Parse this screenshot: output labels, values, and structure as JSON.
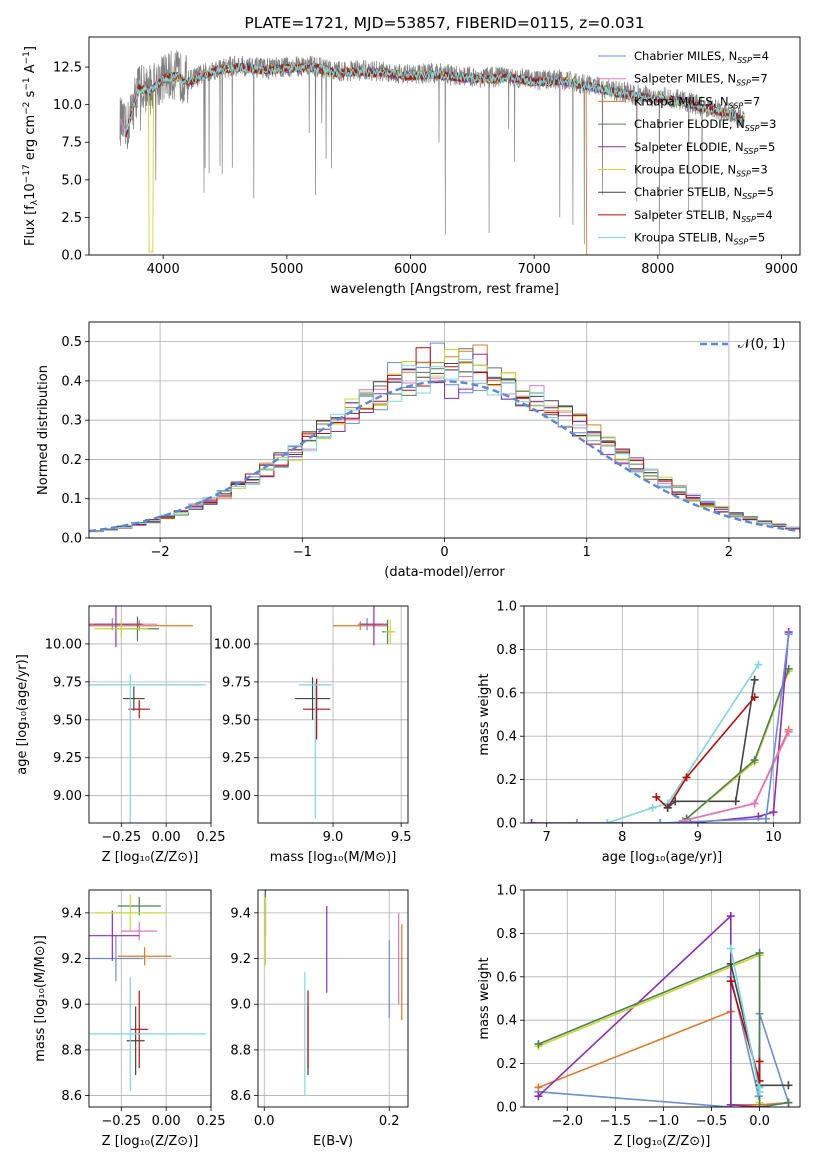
{
  "figure_title": "PLATE=1721, MJD=53857, FIBERID=0115, z=0.031",
  "colors": {
    "chabrier_miles": "#6b8ed6",
    "salpeter_miles": "#e377c2",
    "kroupa_miles": "#e07a2f",
    "chabrier_elodie": "#4f7f5a",
    "salpeter_elodie": "#8e2fb0",
    "kroupa_elodie": "#c8d830",
    "chabrier_stelib": "#444444",
    "salpeter_stelib": "#b01010",
    "kroupa_stelib": "#7fd6dd",
    "spectrum": "#808080",
    "gaussian": "#5b87d6"
  },
  "chart_data": [
    {
      "id": "spectrum",
      "type": "line",
      "ylabel_text": "Flux [f",
      "ylabel_sub": "λ",
      "ylabel_tail": "10",
      "ylabel_exp": "−17",
      "ylabel_units": " erg cm",
      "ylabel_exp2": "−2",
      "ylabel_units2": " s",
      "ylabel_exp3": "−1",
      "ylabel_units3": " A",
      "ylabel_exp4": "−1",
      "ylabel_close": "]",
      "xlabel": "wavelength [Angstrom, rest frame]",
      "xlim": [
        3400,
        9150
      ],
      "ylim": [
        0,
        14.5
      ],
      "xticks": [
        "4000",
        "5000",
        "6000",
        "7000",
        "8000",
        "9000"
      ],
      "xtick_values": [
        4000,
        5000,
        6000,
        7000,
        8000,
        9000
      ],
      "yticks": [
        "0.0",
        "2.5",
        "5.0",
        "7.5",
        "10.0",
        "12.5"
      ],
      "ytick_values": [
        0,
        2.5,
        5,
        7.5,
        10,
        12.5
      ],
      "legend": [
        {
          "prefix": "Chabrier MILES, N",
          "sub": "SSP",
          "suffix": "=4",
          "color_key": "chabrier_miles"
        },
        {
          "prefix": "Salpeter MILES, N",
          "sub": "SSP",
          "suffix": "=7",
          "color_key": "salpeter_miles"
        },
        {
          "prefix": "Kroupa MILES, N",
          "sub": "SSP",
          "suffix": "=7",
          "color_key": "kroupa_miles"
        },
        {
          "prefix": "Chabrier ELODIE, N",
          "sub": "SSP",
          "suffix": "=3",
          "color_key": "chabrier_elodie"
        },
        {
          "prefix": "Salpeter ELODIE, N",
          "sub": "SSP",
          "suffix": "=5",
          "color_key": "salpeter_elodie"
        },
        {
          "prefix": "Kroupa ELODIE, N",
          "sub": "SSP",
          "suffix": "=3",
          "color_key": "kroupa_elodie"
        },
        {
          "prefix": "Chabrier STELIB, N",
          "sub": "SSP",
          "suffix": "=5",
          "color_key": "chabrier_stelib"
        },
        {
          "prefix": "Salpeter STELIB, N",
          "sub": "SSP",
          "suffix": "=4",
          "color_key": "salpeter_stelib"
        },
        {
          "prefix": "Kroupa STELIB, N",
          "sub": "SSP",
          "suffix": "=5",
          "color_key": "kroupa_stelib"
        }
      ],
      "continuum_x": [
        3650,
        3700,
        3800,
        3900,
        4000,
        4100,
        4200,
        4400,
        4600,
        4800,
        5000,
        5200,
        5400,
        5600,
        5800,
        6000,
        6200,
        6400,
        6600,
        6800,
        7000,
        7200,
        7400,
        7600,
        7800,
        8000,
        8200,
        8400,
        8600,
        8700
      ],
      "continuum_y": [
        9.0,
        8.2,
        11.2,
        11.0,
        11.8,
        12.0,
        11.6,
        12.3,
        12.6,
        12.4,
        12.5,
        12.6,
        12.2,
        12.3,
        12.2,
        12.0,
        12.1,
        11.9,
        11.8,
        11.9,
        11.6,
        11.7,
        11.4,
        11.0,
        10.7,
        10.5,
        10.3,
        9.8,
        9.4,
        9.0
      ]
    },
    {
      "id": "residuals",
      "type": "histogram",
      "ylabel": "Normed distribution",
      "xlabel": "(data-model)/error",
      "xlim": [
        -2.5,
        2.5
      ],
      "ylim": [
        0,
        0.55
      ],
      "xticks": [
        "−2",
        "−1",
        "0",
        "1",
        "2"
      ],
      "xtick_values": [
        -2,
        -1,
        0,
        1,
        2
      ],
      "yticks": [
        "0.0",
        "0.1",
        "0.2",
        "0.3",
        "0.4",
        "0.5"
      ],
      "ytick_values": [
        0,
        0.1,
        0.2,
        0.3,
        0.4,
        0.5
      ],
      "legend_label": "𝒩(0, 1)",
      "bin_width": 0.1,
      "gaussian": {
        "mu": 0,
        "sigma": 1
      }
    },
    {
      "id": "age-vs-z",
      "type": "errorbar",
      "ylabel": "age  [log₁₀(age/yr)]",
      "xlabel": "Z [log₁₀(Z/Z⊙)]",
      "xlim": [
        -0.43,
        0.25
      ],
      "ylim": [
        8.82,
        10.25
      ],
      "xticks": [
        "−0.25",
        "0.00",
        "0.25"
      ],
      "xtick_values": [
        -0.25,
        0,
        0.25
      ],
      "yticks": [
        "9.00",
        "9.25",
        "9.50",
        "9.75",
        "10.00"
      ],
      "ytick_values": [
        9.0,
        9.25,
        9.5,
        9.75,
        10.0
      ],
      "points": [
        {
          "c": "chabrier_miles",
          "x": -0.3,
          "xe": 0.1,
          "y": 10.13,
          "ye": 0.04
        },
        {
          "c": "salpeter_miles",
          "x": -0.15,
          "xe": 0.1,
          "y": 10.13,
          "ye": 0.03
        },
        {
          "c": "kroupa_miles",
          "x": -0.15,
          "xe": 0.3,
          "y": 10.12,
          "ye": 0.03
        },
        {
          "c": "chabrier_elodie",
          "x": -0.16,
          "xe": 0.12,
          "y": 10.1,
          "ye": 0.08
        },
        {
          "c": "salpeter_elodie",
          "x": -0.28,
          "xe": 0.15,
          "y": 10.13,
          "ye": 0.15
        },
        {
          "c": "kroupa_elodie",
          "x": -0.25,
          "xe": 0.15,
          "y": 10.1,
          "ye": 0.06
        },
        {
          "c": "chabrier_stelib",
          "x": -0.18,
          "xe": 0.06,
          "y": 9.64,
          "ye": 0.08
        },
        {
          "c": "salpeter_stelib",
          "x": -0.15,
          "xe": 0.06,
          "y": 9.57,
          "ye": 0.06
        },
        {
          "c": "kroupa_stelib",
          "x": -0.2,
          "xe": 0.42,
          "y": 9.73,
          "ye": 0.0
        },
        {
          "c": "kroupa_stelib",
          "x": -0.2,
          "xe": 0.0,
          "y": 9.3,
          "ye": 0.5
        }
      ]
    },
    {
      "id": "age-vs-mass",
      "type": "errorbar",
      "xlabel": "mass [log₁₀(M/M⊙)]",
      "xlim": [
        8.45,
        9.55
      ],
      "ylim": [
        8.82,
        10.25
      ],
      "xticks": [
        "9.0",
        "9.5"
      ],
      "xtick_values": [
        9.0,
        9.5
      ],
      "yticks": [
        "9.00",
        "9.25",
        "9.50",
        "9.75",
        "10.00"
      ],
      "ytick_values": [
        9.0,
        9.25,
        9.5,
        9.75,
        10.0
      ],
      "points": [
        {
          "c": "chabrier_miles",
          "x": 9.25,
          "xe": 0.07,
          "y": 10.13,
          "ye": 0.04
        },
        {
          "c": "salpeter_miles",
          "x": 9.3,
          "xe": 0.07,
          "y": 10.13,
          "ye": 0.03
        },
        {
          "c": "kroupa_miles",
          "x": 9.2,
          "xe": 0.2,
          "y": 10.12,
          "ye": 0.03
        },
        {
          "c": "chabrier_elodie",
          "x": 9.4,
          "xe": 0.04,
          "y": 10.08,
          "ye": 0.08
        },
        {
          "c": "salpeter_elodie",
          "x": 9.3,
          "xe": 0.1,
          "y": 10.13,
          "ye": 0.14
        },
        {
          "c": "kroupa_elodie",
          "x": 9.42,
          "xe": 0.04,
          "y": 10.08,
          "ye": 0.08
        },
        {
          "c": "chabrier_stelib",
          "x": 8.85,
          "xe": 0.13,
          "y": 9.64,
          "ye": 0.14
        },
        {
          "c": "salpeter_stelib",
          "x": 8.88,
          "xe": 0.1,
          "y": 9.57,
          "ye": 0.2
        },
        {
          "c": "kroupa_stelib",
          "x": 8.87,
          "xe": 0.12,
          "y": 9.73,
          "ye": 0.0
        },
        {
          "c": "kroupa_stelib",
          "x": 8.87,
          "xe": 0.0,
          "y": 9.3,
          "ye": 0.45
        }
      ]
    },
    {
      "id": "weight-vs-age",
      "type": "line",
      "ylabel": "mass weight",
      "xlabel": "age  [log₁₀(age/yr)]",
      "xlim": [
        6.7,
        10.35
      ],
      "ylim": [
        0,
        1.0
      ],
      "xticks": [
        "7",
        "8",
        "9",
        "10"
      ],
      "xtick_values": [
        7,
        8,
        9,
        10
      ],
      "yticks": [
        "0.0",
        "0.2",
        "0.4",
        "0.6",
        "0.8",
        "1.0"
      ],
      "ytick_values": [
        0,
        0.2,
        0.4,
        0.6,
        0.8,
        1.0
      ],
      "series": [
        {
          "c": "kroupa_stelib",
          "x": [
            7.8,
            8.4,
            8.6,
            9.8
          ],
          "y": [
            0.0,
            0.07,
            0.09,
            0.73
          ]
        },
        {
          "c": "salpeter_stelib",
          "x": [
            8.45,
            8.6,
            8.85,
            9.75
          ],
          "y": [
            0.12,
            0.07,
            0.21,
            0.58
          ]
        },
        {
          "c": "chabrier_stelib",
          "x": [
            8.6,
            8.7,
            9.5,
            9.75
          ],
          "y": [
            0.07,
            0.1,
            0.1,
            0.66
          ]
        },
        {
          "c": "kroupa_elodie",
          "x": [
            8.85,
            9.75,
            10.2
          ],
          "y": [
            0.02,
            0.28,
            0.7
          ]
        },
        {
          "c": "chabrier_elodie",
          "x": [
            8.85,
            9.75,
            10.2
          ],
          "y": [
            0.02,
            0.29,
            0.71
          ]
        },
        {
          "c": "salpeter_elodie",
          "x": [
            6.8,
            8.9,
            9.8,
            10.0,
            10.2
          ],
          "y": [
            0.0,
            0.0,
            0.03,
            0.05,
            0.88
          ]
        },
        {
          "c": "kroupa_miles",
          "x": [
            8.8,
            9.75,
            10.2
          ],
          "y": [
            0.01,
            0.09,
            0.43
          ]
        },
        {
          "c": "salpeter_miles",
          "x": [
            8.8,
            9.75,
            10.2
          ],
          "y": [
            0.01,
            0.09,
            0.42
          ]
        },
        {
          "c": "chabrier_miles",
          "x": [
            7.4,
            8.5,
            9.9,
            10.2
          ],
          "y": [
            0.0,
            0.0,
            0.02,
            0.87
          ]
        }
      ]
    },
    {
      "id": "mass-vs-z",
      "type": "errorbar",
      "ylabel": "mass [log₁₀(M/M⊙)]",
      "xlabel": "Z [log₁₀(Z/Z⊙)]",
      "xlim": [
        -0.43,
        0.25
      ],
      "ylim": [
        8.55,
        9.5
      ],
      "xticks": [
        "−0.25",
        "0.00",
        "0.25"
      ],
      "xtick_values": [
        -0.25,
        0,
        0.25
      ],
      "yticks": [
        "8.6",
        "8.8",
        "9.0",
        "9.2",
        "9.4"
      ],
      "ytick_values": [
        8.6,
        8.8,
        9.0,
        9.2,
        9.4
      ],
      "points": [
        {
          "c": "chabrier_miles",
          "x": -0.28,
          "xe": 0.15,
          "y": 9.2,
          "ye": 0.1
        },
        {
          "c": "salpeter_miles",
          "x": -0.15,
          "xe": 0.1,
          "y": 9.32,
          "ye": 0.04
        },
        {
          "c": "kroupa_miles",
          "x": -0.12,
          "xe": 0.15,
          "y": 9.21,
          "ye": 0.04
        },
        {
          "c": "chabrier_elodie",
          "x": -0.15,
          "xe": 0.12,
          "y": 9.43,
          "ye": 0.04
        },
        {
          "c": "salpeter_elodie",
          "x": -0.3,
          "xe": 0.15,
          "y": 9.3,
          "ye": 0.11
        },
        {
          "c": "kroupa_elodie",
          "x": -0.2,
          "xe": 0.2,
          "y": 9.4,
          "ye": 0.08
        },
        {
          "c": "chabrier_stelib",
          "x": -0.17,
          "xe": 0.05,
          "y": 8.84,
          "ye": 0.15
        },
        {
          "c": "salpeter_stelib",
          "x": -0.15,
          "xe": 0.05,
          "y": 8.89,
          "ye": 0.17
        },
        {
          "c": "kroupa_stelib",
          "x": -0.2,
          "xe": 0.42,
          "y": 8.87,
          "ye": 0.0
        },
        {
          "c": "kroupa_stelib",
          "x": -0.2,
          "xe": 0.0,
          "y": 8.87,
          "ye": 0.25
        }
      ]
    },
    {
      "id": "mass-vs-ebv",
      "type": "errorbar",
      "xlabel": "E(B-V)",
      "xlim": [
        -0.01,
        0.23
      ],
      "ylim": [
        8.55,
        9.5
      ],
      "xticks": [
        "0.0",
        "0.2"
      ],
      "xtick_values": [
        0.0,
        0.2
      ],
      "yticks": [
        "8.6",
        "8.8",
        "9.0",
        "9.2",
        "9.4"
      ],
      "ytick_values": [
        8.6,
        8.8,
        9.0,
        9.2,
        9.4
      ],
      "points": [
        {
          "c": "chabrier_miles",
          "x": 0.2,
          "xe": 0,
          "y": 9.11,
          "ye": 0.17
        },
        {
          "c": "salpeter_miles",
          "x": 0.215,
          "xe": 0,
          "y": 9.2,
          "ye": 0.2
        },
        {
          "c": "kroupa_miles",
          "x": 0.22,
          "xe": 0,
          "y": 9.14,
          "ye": 0.21
        },
        {
          "c": "chabrier_elodie",
          "x": 0.002,
          "xe": 0,
          "y": 9.4,
          "ye": 0.1
        },
        {
          "c": "salpeter_elodie",
          "x": 0.1,
          "xe": 0,
          "y": 9.24,
          "ye": 0.19
        },
        {
          "c": "kroupa_elodie",
          "x": 0.002,
          "xe": 0,
          "y": 9.32,
          "ye": 0.15
        },
        {
          "c": "chabrier_stelib",
          "x": 0.07,
          "xe": 0,
          "y": 8.84,
          "ye": 0.15
        },
        {
          "c": "salpeter_stelib",
          "x": 0.07,
          "xe": 0,
          "y": 8.89,
          "ye": 0.17
        },
        {
          "c": "kroupa_stelib",
          "x": 0.065,
          "xe": 0,
          "y": 8.87,
          "ye": 0.27
        }
      ]
    },
    {
      "id": "weight-vs-z",
      "type": "line",
      "ylabel": "mass weight",
      "xlabel": "Z [log₁₀(Z/Z⊙)]",
      "xlim": [
        -2.45,
        0.42
      ],
      "ylim": [
        0,
        1.0
      ],
      "xticks": [
        "−2.0",
        "−1.5",
        "−1.0",
        "−0.5",
        "0.0"
      ],
      "xtick_values": [
        -2.0,
        -1.5,
        -1.0,
        -0.5,
        0.0
      ],
      "yticks": [
        "0.0",
        "0.2",
        "0.4",
        "0.6",
        "0.8",
        "1.0"
      ],
      "ytick_values": [
        0,
        0.2,
        0.4,
        0.6,
        0.8,
        1.0
      ],
      "series": [
        {
          "c": "chabrier_miles",
          "x": [
            -2.3,
            -0.3,
            -0.3,
            -0.01,
            0.0,
            0.3
          ],
          "y": [
            0.07,
            0.0,
            0.6,
            0.05,
            0.43,
            0.02
          ]
        },
        {
          "c": "kroupa_miles",
          "x": [
            -2.3,
            -0.3,
            -0.3,
            0.0,
            0.3
          ],
          "y": [
            0.09,
            0.44,
            0.01,
            0.01,
            0.02
          ]
        },
        {
          "c": "salpeter_elodie",
          "x": [
            -2.3,
            -0.3,
            -0.3,
            0.0
          ],
          "y": [
            0.05,
            0.88,
            0.01,
            0.0
          ]
        },
        {
          "c": "kroupa_elodie",
          "x": [
            -2.3,
            0.0,
            0.0
          ],
          "y": [
            0.28,
            0.7,
            0.02
          ]
        },
        {
          "c": "chabrier_elodie",
          "x": [
            -2.3,
            0.0,
            0.0,
            0.3
          ],
          "y": [
            0.29,
            0.71,
            0.0,
            0.02
          ]
        },
        {
          "c": "chabrier_stelib",
          "x": [
            -0.3,
            0.0,
            0.0,
            0.3
          ],
          "y": [
            0.66,
            0.1,
            0.1,
            0.1
          ]
        },
        {
          "c": "salpeter_stelib",
          "x": [
            -0.3,
            0.0,
            0.0
          ],
          "y": [
            0.58,
            0.12,
            0.21
          ]
        },
        {
          "c": "kroupa_stelib",
          "x": [
            -0.3,
            0.0,
            0.0
          ],
          "y": [
            0.73,
            0.07,
            0.09
          ]
        }
      ]
    }
  ]
}
